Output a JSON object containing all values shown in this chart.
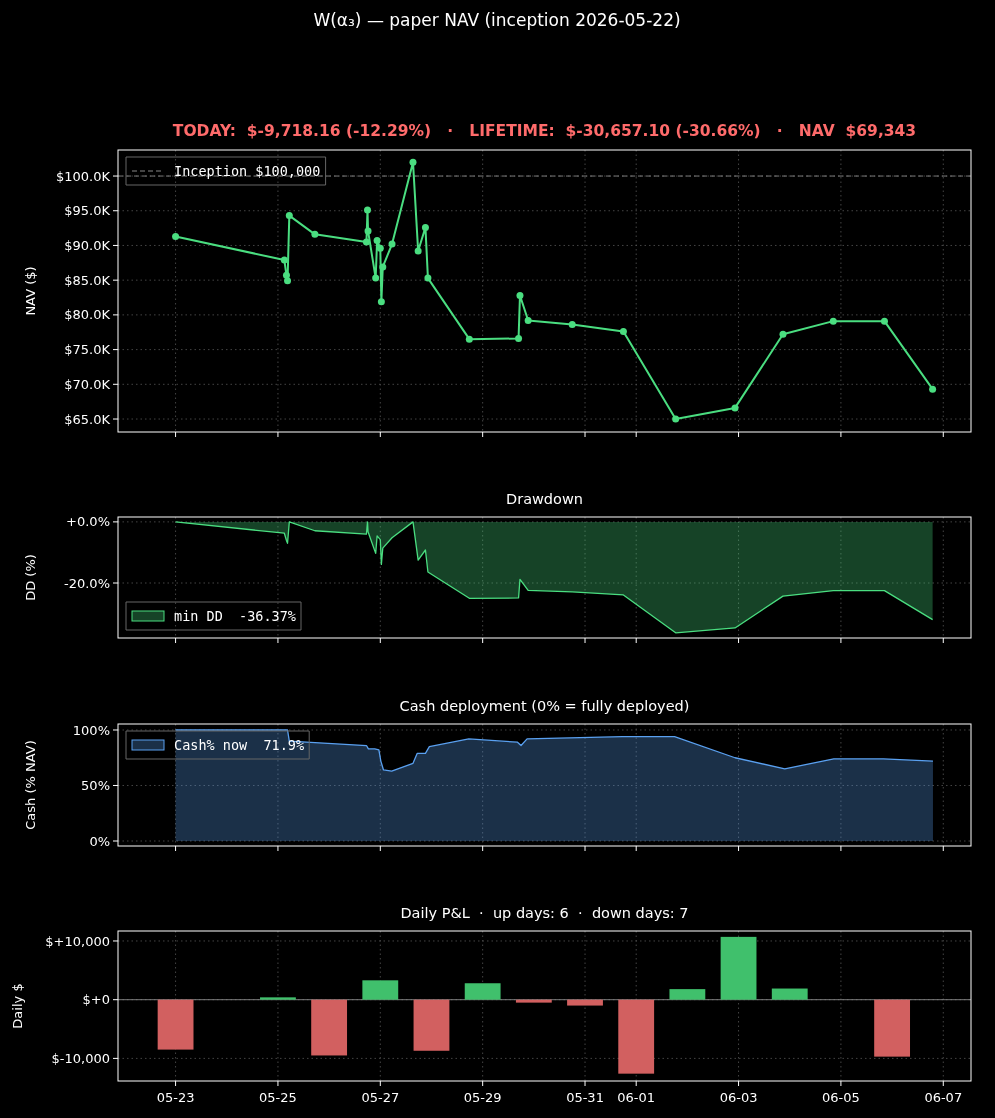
{
  "chart_data": [
    {
      "type": "line",
      "title": "W(α₃) — paper NAV (inception 2026-05-22)",
      "subtitle": "TODAY:  $-9,718.16 (-12.29%)   ·   LIFETIME:  $-30,657.10 (-30.66%)   ·   NAV  $69,343",
      "ylabel": "NAV ($)",
      "xlim": [
        "2026-05-21T21:00",
        "2026-06-07T13:00"
      ],
      "ylim": [
        63130,
        103750
      ],
      "xticks": [
        {
          "value": "2026-05-23",
          "label": null
        },
        {
          "value": "2026-05-25",
          "label": null
        },
        {
          "value": "2026-05-27",
          "label": null
        },
        {
          "value": "2026-05-29",
          "label": null
        },
        {
          "value": "2026-05-31",
          "label": null
        },
        {
          "value": "2026-06-01",
          "label": null
        },
        {
          "value": "2026-06-03",
          "label": null
        },
        {
          "value": "2026-06-05",
          "label": null
        },
        {
          "value": "2026-06-07",
          "label": null
        }
      ],
      "yticks": [
        {
          "value": 65000,
          "label": "$65.0K"
        },
        {
          "value": 70000,
          "label": "$70.0K"
        },
        {
          "value": 75000,
          "label": "$75.0K"
        },
        {
          "value": 80000,
          "label": "$80.0K"
        },
        {
          "value": 85000,
          "label": "$85.0K"
        },
        {
          "value": 90000,
          "label": "$90.0K"
        },
        {
          "value": 95000,
          "label": "$95.0K"
        },
        {
          "value": 100000,
          "label": "$100.0K"
        }
      ],
      "x": [
        "2026-05-23T00:00",
        "2026-05-25T03:00",
        "2026-05-25T04:00",
        "2026-05-25T04:30",
        "2026-05-25T05:20",
        "2026-05-25T17:20",
        "2026-05-26T17:30",
        "2026-05-26T18:00",
        "2026-05-26T18:15",
        "2026-05-26T21:50",
        "2026-05-26T22:30",
        "2026-05-27T00:00",
        "2026-05-27T00:30",
        "2026-05-27T01:10",
        "2026-05-27T05:30",
        "2026-05-27T15:20",
        "2026-05-27T17:45",
        "2026-05-27T21:10",
        "2026-05-27T22:20",
        "2026-05-28T17:45",
        "2026-05-29T16:50",
        "2026-05-29T17:30",
        "2026-05-29T21:20",
        "2026-05-30T18:00",
        "2026-05-31T18:00",
        "2026-06-01T18:30",
        "2026-06-02T22:20",
        "2026-06-03T20:50",
        "2026-06-04T20:25",
        "2026-06-05T20:25",
        "2026-06-06T19:00"
      ],
      "series": [
        {
          "color": "#4ade80",
          "values": [
            91300,
            87900,
            85700,
            84900,
            94300,
            91600,
            90500,
            95100,
            92100,
            85300,
            90700,
            89600,
            81900,
            86900,
            90200,
            102000,
            89200,
            92600,
            85300,
            76500,
            76600,
            82800,
            79200,
            78600,
            77600,
            65000,
            66600,
            77200,
            79100,
            79100,
            69300
          ]
        }
      ],
      "ref_lines": [
        {
          "axis": "y",
          "value": 100000,
          "label": "Inception $100,000",
          "color": "#888888",
          "line_style": "dashed"
        }
      ],
      "marker": "circle",
      "grid": true,
      "legend": "top left",
      "tick_labels": "y"
    },
    {
      "type": "area",
      "title": "Drawdown",
      "ylabel": "DD (%)",
      "xlim": [
        "2026-05-21T21:00",
        "2026-06-07T13:00"
      ],
      "ylim": [
        -38.0,
        1.6
      ],
      "xticks": [
        {
          "value": "2026-05-23",
          "label": null
        },
        {
          "value": "2026-05-25",
          "label": null
        },
        {
          "value": "2026-05-27",
          "label": null
        },
        {
          "value": "2026-05-29",
          "label": null
        },
        {
          "value": "2026-05-31",
          "label": null
        },
        {
          "value": "2026-06-01",
          "label": null
        },
        {
          "value": "2026-06-03",
          "label": null
        },
        {
          "value": "2026-06-05",
          "label": null
        },
        {
          "value": "2026-06-07",
          "label": null
        }
      ],
      "yticks": [
        {
          "value": -20,
          "label": "-20.0%"
        },
        {
          "value": 0,
          "label": "+0.0%"
        }
      ],
      "x": [
        "2026-05-23T00:00",
        "2026-05-25T03:00",
        "2026-05-25T04:00",
        "2026-05-25T04:30",
        "2026-05-25T05:20",
        "2026-05-25T17:20",
        "2026-05-26T17:30",
        "2026-05-26T18:00",
        "2026-05-26T18:15",
        "2026-05-26T21:50",
        "2026-05-26T22:30",
        "2026-05-27T00:00",
        "2026-05-27T00:30",
        "2026-05-27T01:10",
        "2026-05-27T05:30",
        "2026-05-27T15:20",
        "2026-05-27T17:45",
        "2026-05-27T21:10",
        "2026-05-27T22:20",
        "2026-05-28T17:45",
        "2026-05-29T16:50",
        "2026-05-29T17:30",
        "2026-05-29T21:20",
        "2026-05-30T18:00",
        "2026-05-31T18:00",
        "2026-06-01T18:30",
        "2026-06-02T22:20",
        "2026-06-03T20:50",
        "2026-06-04T20:25",
        "2026-06-05T20:25",
        "2026-06-06T19:00"
      ],
      "series": [
        {
          "name": "min DD  -36.37%",
          "color": "#4ade80",
          "values": [
            0,
            -3.7,
            -6.1,
            -7.0,
            0,
            -2.9,
            -4.0,
            0,
            -3.2,
            -10.3,
            -4.6,
            -5.8,
            -13.9,
            -8.6,
            -5.2,
            0,
            -12.5,
            -9.2,
            -16.4,
            -25.0,
            -24.9,
            -18.8,
            -22.4,
            -22.9,
            -23.9,
            -36.3,
            -34.7,
            -24.3,
            -22.5,
            -22.5,
            -32.0
          ]
        }
      ],
      "grid": true,
      "legend": "bottom left",
      "tick_labels": "y"
    },
    {
      "type": "area",
      "title": "Cash deployment (0% = fully deployed)",
      "ylabel": "Cash (% NAV)",
      "xlim": [
        "2026-05-21T21:00",
        "2026-06-07T13:00"
      ],
      "ylim": [
        -4.5,
        105.4
      ],
      "xticks": [
        {
          "value": "2026-05-23",
          "label": null
        },
        {
          "value": "2026-05-25",
          "label": null
        },
        {
          "value": "2026-05-27",
          "label": null
        },
        {
          "value": "2026-05-29",
          "label": null
        },
        {
          "value": "2026-05-31",
          "label": null
        },
        {
          "value": "2026-06-01",
          "label": null
        },
        {
          "value": "2026-06-03",
          "label": null
        },
        {
          "value": "2026-06-05",
          "label": null
        },
        {
          "value": "2026-06-07",
          "label": null
        }
      ],
      "yticks": [
        {
          "value": 0,
          "label": "0%"
        },
        {
          "value": 50,
          "label": "50%"
        },
        {
          "value": 100,
          "label": "100%"
        }
      ],
      "x": [
        "2026-05-23T00:00",
        "2026-05-25T04:30",
        "2026-05-25T05:20",
        "2026-05-26T17:30",
        "2026-05-26T18:25",
        "2026-05-26T21:25",
        "2026-05-26T23:20",
        "2026-05-27T00:15",
        "2026-05-27T01:30",
        "2026-05-27T05:20",
        "2026-05-27T15:20",
        "2026-05-27T17:20",
        "2026-05-27T21:10",
        "2026-05-27T23:00",
        "2026-05-28T17:30",
        "2026-05-29T16:20",
        "2026-05-29T18:00",
        "2026-05-29T20:50",
        "2026-05-31T17:30",
        "2026-06-01T18:00",
        "2026-06-02T22:20",
        "2026-06-03T21:40",
        "2026-06-04T20:40",
        "2026-06-05T19:55",
        "2026-06-06T19:10"
      ],
      "series": [
        {
          "name": "Cash% now  71.9%",
          "color": "#5aa0f0",
          "values": [
            100,
            100,
            90,
            86,
            83,
            83,
            82,
            72,
            64,
            63,
            70,
            79,
            79,
            85,
            92,
            89,
            86,
            92,
            94,
            94,
            75,
            65,
            74,
            74,
            72
          ]
        }
      ],
      "grid": true,
      "legend": "top left",
      "tick_labels": "y"
    },
    {
      "type": "bar",
      "title": "Daily P&L  ·  up days: 6  ·  down days: 7",
      "ylabel": "Daily $",
      "xlim": [
        "2026-05-21T21:00",
        "2026-06-07T13:00"
      ],
      "ylim": [
        -13850,
        11700
      ],
      "xticks": [
        {
          "value": "2026-05-23",
          "label": "05-23"
        },
        {
          "value": "2026-05-25",
          "label": "05-25"
        },
        {
          "value": "2026-05-27",
          "label": "05-27"
        },
        {
          "value": "2026-05-29",
          "label": "05-29"
        },
        {
          "value": "2026-05-31",
          "label": "05-31"
        },
        {
          "value": "2026-06-01",
          "label": "06-01"
        },
        {
          "value": "2026-06-03",
          "label": "06-03"
        },
        {
          "value": "2026-06-05",
          "label": "06-05"
        },
        {
          "value": "2026-06-07",
          "label": "06-07"
        }
      ],
      "yticks": [
        {
          "value": -10000,
          "label": "$-10,000"
        },
        {
          "value": 0,
          "label": "$+0"
        },
        {
          "value": 10000,
          "label": "$+10,000"
        }
      ],
      "x": [
        "2026-05-23",
        "2026-05-25",
        "2026-05-26",
        "2026-05-27",
        "2026-05-28",
        "2026-05-29",
        "2026-05-30",
        "2026-05-31",
        "2026-06-01",
        "2026-06-02",
        "2026-06-03",
        "2026-06-04",
        "2026-06-06"
      ],
      "values": [
        -8500,
        400,
        -9500,
        3300,
        -8700,
        2800,
        -500,
        -1000,
        -12600,
        1800,
        10700,
        1900,
        -9700
      ],
      "colors": [
        "#d26060",
        "#40c06c",
        "#d26060",
        "#40c06c",
        "#d26060",
        "#40c06c",
        "#d26060",
        "#d26060",
        "#d26060",
        "#40c06c",
        "#40c06c",
        "#40c06c",
        "#d26060"
      ],
      "ref_lines": [
        {
          "axis": "y",
          "value": 0,
          "color": "#888888"
        }
      ],
      "grid": true
    }
  ]
}
